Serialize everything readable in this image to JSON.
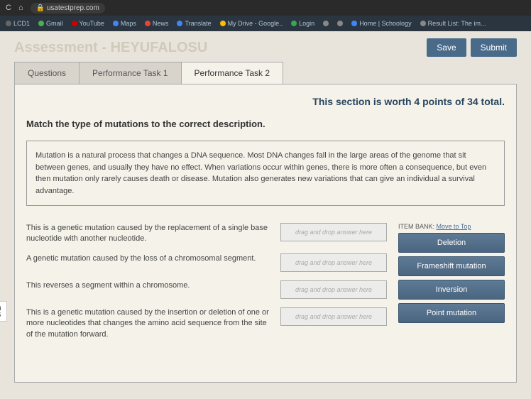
{
  "browser": {
    "url": "usatestprep.com"
  },
  "bookmarks": [
    {
      "label": "LCD1",
      "color": "#666"
    },
    {
      "label": "Gmail",
      "color": "#4caf50"
    },
    {
      "label": "YouTube",
      "color": "#cc0000"
    },
    {
      "label": "Maps",
      "color": "#4285f4"
    },
    {
      "label": "News",
      "color": "#ea4335"
    },
    {
      "label": "Translate",
      "color": "#4285f4"
    },
    {
      "label": "My Drive - Google..",
      "color": "#fbbc05"
    },
    {
      "label": "Login",
      "color": "#34a853"
    },
    {
      "label": "",
      "color": "#888"
    },
    {
      "label": "",
      "color": "#888"
    },
    {
      "label": "Home | Schoology",
      "color": "#4285f4"
    },
    {
      "label": "Result List: The im...",
      "color": "#888"
    }
  ],
  "page": {
    "title": "Assessment - HEYUFALOSU",
    "save_label": "Save",
    "submit_label": "Submit"
  },
  "tabs": [
    {
      "label": "Questions",
      "active": false
    },
    {
      "label": "Performance Task 1",
      "active": false
    },
    {
      "label": "Performance Task 2",
      "active": true
    }
  ],
  "section": {
    "points_text": "This section is worth 4 points of 34 total.",
    "instruction": "Match the type of mutations to the correct description.",
    "info": "Mutation is a natural process that changes a DNA sequence. Most DNA changes fall in the large areas of the genome that sit between genes, and usually they have no effect. When variations occur within genes, there is more often a consequence, but even then mutation only rarely causes death or disease. Mutation also generates new variations that can give an individual a survival advantage."
  },
  "matches": [
    {
      "desc": "This is a genetic mutation caused by the replacement of a single base nucleotide with another nucleotide.",
      "placeholder": "drag and drop answer here"
    },
    {
      "desc": "A genetic mutation caused by the loss of a chromosomal segment.",
      "placeholder": "drag and drop answer here"
    },
    {
      "desc": "This reverses a segment within a chromosome.",
      "placeholder": "drag and drop answer here"
    },
    {
      "desc": "This is a genetic mutation caused by the insertion or deletion of one or more nucleotides that changes the amino acid sequence from the site of the mutation forward.",
      "placeholder": "drag and drop answer here"
    }
  ],
  "item_bank": {
    "label_prefix": "ITEM BANK:",
    "link_text": "Move to Top",
    "items": [
      "Deletion",
      "Frameshift mutation",
      "Inversion",
      "Point mutation"
    ]
  },
  "left_hint": {
    "line1": "g",
    "line2": "5"
  }
}
